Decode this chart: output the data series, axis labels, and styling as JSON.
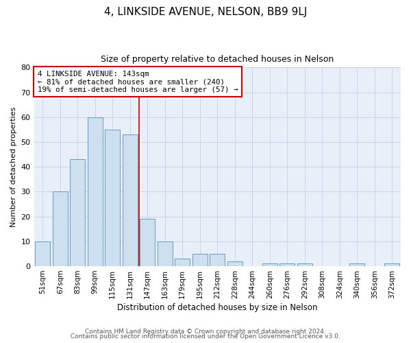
{
  "title": "4, LINKSIDE AVENUE, NELSON, BB9 9LJ",
  "subtitle": "Size of property relative to detached houses in Nelson",
  "xlabel": "Distribution of detached houses by size in Nelson",
  "ylabel": "Number of detached properties",
  "bar_color": "#cce0f0",
  "bar_edge_color": "#6699cc",
  "grid_color": "#c8d4e8",
  "plot_bg_color": "#e8eff8",
  "fig_bg_color": "#ffffff",
  "categories": [
    "51sqm",
    "67sqm",
    "83sqm",
    "99sqm",
    "115sqm",
    "131sqm",
    "147sqm",
    "163sqm",
    "179sqm",
    "195sqm",
    "212sqm",
    "228sqm",
    "244sqm",
    "260sqm",
    "276sqm",
    "292sqm",
    "308sqm",
    "324sqm",
    "340sqm",
    "356sqm",
    "372sqm"
  ],
  "values": [
    10,
    30,
    43,
    60,
    55,
    53,
    19,
    10,
    3,
    5,
    5,
    2,
    0,
    1,
    1,
    1,
    0,
    0,
    1,
    0,
    1
  ],
  "vline_x_idx": 6,
  "vline_color": "#cc0000",
  "annotation_text": "4 LINKSIDE AVENUE: 143sqm\n← 81% of detached houses are smaller (240)\n19% of semi-detached houses are larger (57) →",
  "annotation_box_color": "#ffffff",
  "annotation_box_edge_color": "#cc0000",
  "ylim": [
    0,
    80
  ],
  "yticks": [
    0,
    10,
    20,
    30,
    40,
    50,
    60,
    70,
    80
  ],
  "footer_line1": "Contains HM Land Registry data © Crown copyright and database right 2024.",
  "footer_line2": "Contains public sector information licensed under the Open Government Licence v3.0."
}
